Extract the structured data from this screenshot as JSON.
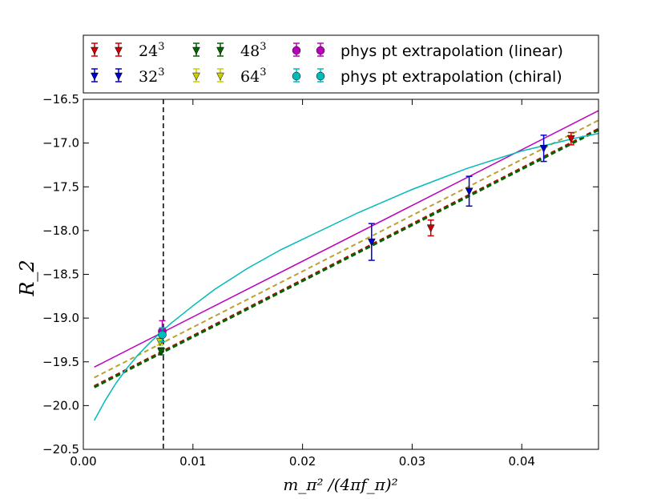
{
  "chart_data": {
    "type": "scatter",
    "title": "",
    "xlabel": "m_π² /(4πf_π)²",
    "ylabel": "R_2",
    "xlim": [
      0.0,
      0.047
    ],
    "ylim": [
      -20.5,
      -16.5
    ],
    "xticks": [
      0.0,
      0.01,
      0.02,
      0.03,
      0.04
    ],
    "xtick_labels": [
      "0.00",
      "0.01",
      "0.02",
      "0.03",
      "0.04"
    ],
    "yticks": [
      -20.5,
      -20.0,
      -19.5,
      -19.0,
      -18.5,
      -18.0,
      -17.5,
      -17.0,
      -16.5
    ],
    "ytick_labels": [
      "−20.5",
      "−20.0",
      "−19.5",
      "−19.0",
      "−18.5",
      "−18.0",
      "−17.5",
      "−17.0",
      "−16.5"
    ],
    "vertical_line_x": 0.0073,
    "legend_position": "top",
    "series": [
      {
        "name": "24",
        "exp": "3",
        "color": "#cc0000",
        "marker": "triangle-down",
        "points": [
          {
            "x": 0.0317,
            "y": -17.97,
            "err": 0.09
          },
          {
            "x": 0.0445,
            "y": -16.95,
            "err": 0.07
          }
        ]
      },
      {
        "name": "32",
        "exp": "3",
        "color": "#0000cc",
        "marker": "triangle-down",
        "points": [
          {
            "x": 0.0263,
            "y": -18.13,
            "err": 0.21
          },
          {
            "x": 0.0352,
            "y": -17.55,
            "err": 0.17
          },
          {
            "x": 0.042,
            "y": -17.06,
            "err": 0.15
          }
        ]
      },
      {
        "name": "48",
        "exp": "3",
        "color": "#006400",
        "marker": "triangle-down",
        "points": [
          {
            "x": 0.0071,
            "y": -19.38,
            "err": 0.04
          }
        ]
      },
      {
        "name": "64",
        "exp": "3",
        "color": "#cccc00",
        "marker": "triangle-down",
        "points": [
          {
            "x": 0.007,
            "y": -19.27,
            "err": 0.04
          }
        ]
      },
      {
        "name": "phys pt extrapolation (linear)",
        "color": "#bb00bb",
        "marker": "circle",
        "points": [
          {
            "x": 0.0072,
            "y": -19.15,
            "err": 0.12
          }
        ]
      },
      {
        "name": "phys pt extrapolation (chiral)",
        "color": "#00bbbb",
        "marker": "circle",
        "points": [
          {
            "x": 0.0072,
            "y": -19.19,
            "err": 0.08
          }
        ]
      }
    ],
    "lines": [
      {
        "name": "linear fit",
        "color": "#bb00bb",
        "style": "solid",
        "x": [
          0.001,
          0.047
        ],
        "y": [
          -19.56,
          -16.63
        ]
      },
      {
        "name": "fit 64^3",
        "color": "#bba030",
        "style": "dashed",
        "x": [
          0.001,
          0.047
        ],
        "y": [
          -19.68,
          -16.74
        ]
      },
      {
        "name": "fit 24^3",
        "color": "#cc0000",
        "style": "dashed",
        "x": [
          0.001,
          0.047
        ],
        "y": [
          -19.78,
          -16.84
        ]
      },
      {
        "name": "fit 48^3",
        "color": "#006400",
        "style": "dashed",
        "x": [
          0.001,
          0.047
        ],
        "y": [
          -19.79,
          -16.85
        ]
      },
      {
        "name": "chiral fit",
        "color": "#00bbbb",
        "style": "solid",
        "x": [
          0.001,
          0.002,
          0.003,
          0.004,
          0.005,
          0.006,
          0.007,
          0.008,
          0.01,
          0.012,
          0.015,
          0.018,
          0.02,
          0.025,
          0.03,
          0.035,
          0.04,
          0.045,
          0.047
        ],
        "y": [
          -20.17,
          -19.94,
          -19.74,
          -19.57,
          -19.42,
          -19.29,
          -19.17,
          -19.06,
          -18.86,
          -18.67,
          -18.43,
          -18.22,
          -18.1,
          -17.8,
          -17.53,
          -17.29,
          -17.09,
          -16.94,
          -16.89
        ]
      }
    ]
  }
}
